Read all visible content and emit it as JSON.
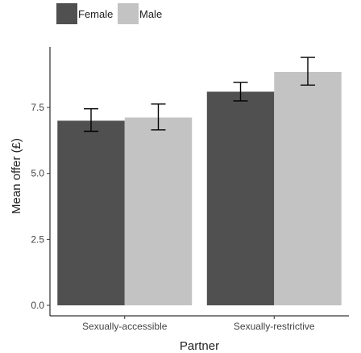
{
  "chart_data": {
    "type": "bar",
    "categories": [
      "Sexually-accessible",
      "Sexually-restrictive"
    ],
    "series": [
      {
        "name": "Female",
        "color": "#505050",
        "values": [
          7.0,
          8.1
        ],
        "error_low": [
          6.6,
          7.75
        ],
        "error_high": [
          7.45,
          8.45
        ]
      },
      {
        "name": "Male",
        "color": "#c3c3c3",
        "values": [
          7.12,
          8.85
        ],
        "error_low": [
          6.65,
          8.35
        ],
        "error_high": [
          7.63,
          9.4
        ]
      }
    ],
    "xlabel": "Partner",
    "ylabel": "Mean offer (£)",
    "ylim": [
      0,
      9.8
    ],
    "yticks": [
      0.0,
      2.5,
      5.0,
      7.5
    ],
    "ytick_labels": [
      "0.0",
      "2.5",
      "5.0",
      "7.5"
    ],
    "grid": false,
    "legend_position": "top-left"
  }
}
